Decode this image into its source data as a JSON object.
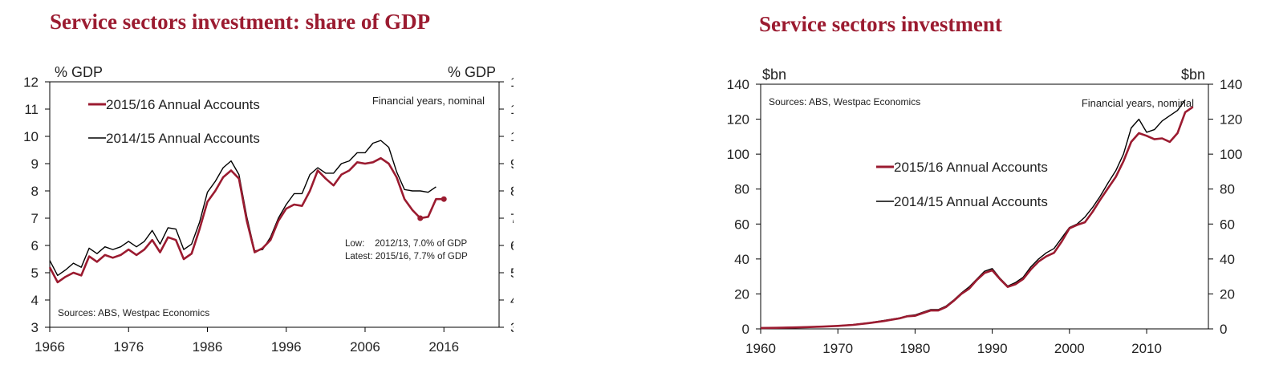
{
  "colors": {
    "title": "#9b1b30",
    "series_2015_16": "#9b1b30",
    "series_2014_15": "#000000",
    "axis": "#000000"
  },
  "chart_data": [
    {
      "type": "line",
      "title": "Service sectors investment: share of GDP",
      "ylabel_left": "% GDP",
      "ylabel_right": "% GDP",
      "note": "Financial years, nominal",
      "source": "Sources: ABS, Westpac Economics",
      "annotations": [
        "Low:    2012/13, 7.0% of GDP",
        "Latest: 2015/16, 7.7% of GDP"
      ],
      "xlim": [
        1966,
        2023
      ],
      "ylim": [
        3,
        12
      ],
      "xticks": [
        1966,
        1976,
        1986,
        1996,
        2006,
        2016
      ],
      "yticks": [
        3,
        4,
        5,
        6,
        7,
        8,
        9,
        10,
        11,
        12
      ],
      "legend_position": "top-left",
      "series": [
        {
          "name": "2015/16 Annual Accounts",
          "color": "#9b1b30",
          "x": [
            1966,
            1967,
            1968,
            1969,
            1970,
            1971,
            1972,
            1973,
            1974,
            1975,
            1976,
            1977,
            1978,
            1979,
            1980,
            1981,
            1982,
            1983,
            1984,
            1985,
            1986,
            1987,
            1988,
            1989,
            1990,
            1991,
            1992,
            1993,
            1994,
            1995,
            1996,
            1997,
            1998,
            1999,
            2000,
            2001,
            2002,
            2003,
            2004,
            2005,
            2006,
            2007,
            2008,
            2009,
            2010,
            2011,
            2012,
            2013,
            2014,
            2015,
            2016
          ],
          "values": [
            5.2,
            4.65,
            4.85,
            5.0,
            4.9,
            5.6,
            5.4,
            5.65,
            5.55,
            5.65,
            5.85,
            5.65,
            5.85,
            6.2,
            5.75,
            6.3,
            6.2,
            5.5,
            5.7,
            6.6,
            7.6,
            8.0,
            8.5,
            8.75,
            8.45,
            6.9,
            5.75,
            5.9,
            6.2,
            6.9,
            7.35,
            7.5,
            7.45,
            8.0,
            8.75,
            8.45,
            8.2,
            8.6,
            8.75,
            9.05,
            9.0,
            9.05,
            9.2,
            9.0,
            8.5,
            7.7,
            7.3,
            7.0,
            7.05,
            7.7,
            7.7
          ]
        },
        {
          "name": "2014/15 Annual Accounts",
          "color": "#000000",
          "x": [
            1966,
            1967,
            1968,
            1969,
            1970,
            1971,
            1972,
            1973,
            1974,
            1975,
            1976,
            1977,
            1978,
            1979,
            1980,
            1981,
            1982,
            1983,
            1984,
            1985,
            1986,
            1987,
            1988,
            1989,
            1990,
            1991,
            1992,
            1993,
            1994,
            1995,
            1996,
            1997,
            1998,
            1999,
            2000,
            2001,
            2002,
            2003,
            2004,
            2005,
            2006,
            2007,
            2008,
            2009,
            2010,
            2011,
            2012,
            2013,
            2014,
            2015
          ],
          "values": [
            5.45,
            4.9,
            5.1,
            5.35,
            5.2,
            5.9,
            5.7,
            5.95,
            5.85,
            5.95,
            6.15,
            5.95,
            6.15,
            6.55,
            6.05,
            6.65,
            6.6,
            5.85,
            6.05,
            6.85,
            7.95,
            8.35,
            8.85,
            9.1,
            8.6,
            7.05,
            5.8,
            5.85,
            6.3,
            7.0,
            7.5,
            7.9,
            7.9,
            8.6,
            8.85,
            8.65,
            8.65,
            9.0,
            9.1,
            9.4,
            9.4,
            9.75,
            9.85,
            9.6,
            8.7,
            8.05,
            8.0,
            8.0,
            7.95,
            8.15
          ]
        }
      ]
    },
    {
      "type": "line",
      "title": "Service sectors investment",
      "ylabel_left": "$bn",
      "ylabel_right": "$bn",
      "note": "Financial years, nominal",
      "source": "Sources: ABS, Westpac Economics",
      "xlim": [
        1960,
        2018
      ],
      "ylim": [
        0,
        140
      ],
      "xticks": [
        1960,
        1970,
        1980,
        1990,
        2000,
        2010
      ],
      "yticks": [
        0,
        20,
        40,
        60,
        80,
        100,
        120,
        140
      ],
      "legend_position": "center",
      "series": [
        {
          "name": "2015/16 Annual Accounts",
          "color": "#9b1b30",
          "x": [
            1960,
            1962,
            1964,
            1966,
            1968,
            1970,
            1972,
            1974,
            1976,
            1978,
            1979,
            1980,
            1981,
            1982,
            1983,
            1984,
            1985,
            1986,
            1987,
            1988,
            1989,
            1990,
            1991,
            1992,
            1993,
            1994,
            1995,
            1996,
            1997,
            1998,
            1999,
            2000,
            2001,
            2002,
            2003,
            2004,
            2005,
            2006,
            2007,
            2008,
            2009,
            2010,
            2011,
            2012,
            2013,
            2014,
            2015,
            2016
          ],
          "values": [
            0.5,
            0.6,
            0.8,
            1.0,
            1.3,
            1.7,
            2.3,
            3.3,
            4.5,
            6.0,
            7.2,
            7.5,
            9.0,
            10.5,
            10.5,
            12.5,
            16.0,
            20.0,
            23.0,
            28.0,
            32.0,
            33.5,
            28.5,
            24.0,
            25.5,
            28.5,
            34.0,
            38.5,
            41.5,
            43.5,
            50.0,
            57.5,
            59.5,
            61.0,
            67.0,
            74.0,
            80.5,
            87.0,
            96.0,
            107.0,
            112.0,
            110.5,
            108.5,
            109.0,
            107.0,
            112.0,
            124.0,
            127.0
          ]
        },
        {
          "name": "2014/15 Annual Accounts",
          "color": "#000000",
          "x": [
            1960,
            1962,
            1964,
            1966,
            1968,
            1970,
            1972,
            1974,
            1976,
            1978,
            1979,
            1980,
            1981,
            1982,
            1983,
            1984,
            1985,
            1986,
            1987,
            1988,
            1989,
            1990,
            1991,
            1992,
            1993,
            1994,
            1995,
            1996,
            1997,
            1998,
            1999,
            2000,
            2001,
            2002,
            2003,
            2004,
            2005,
            2006,
            2007,
            2008,
            2009,
            2010,
            2011,
            2012,
            2013,
            2014,
            2015
          ],
          "values": [
            0.6,
            0.7,
            0.9,
            1.1,
            1.4,
            1.8,
            2.5,
            3.5,
            4.8,
            6.3,
            7.5,
            8.0,
            9.5,
            11.0,
            11.0,
            13.0,
            16.5,
            20.5,
            24.0,
            28.5,
            33.0,
            34.5,
            29.0,
            24.5,
            26.5,
            29.5,
            35.5,
            40.0,
            43.5,
            46.0,
            52.0,
            58.0,
            60.0,
            64.0,
            69.5,
            76.0,
            83.5,
            90.5,
            100.0,
            115.0,
            120.0,
            112.5,
            114.0,
            119.0,
            122.0,
            125.0,
            131.0
          ]
        }
      ]
    }
  ]
}
